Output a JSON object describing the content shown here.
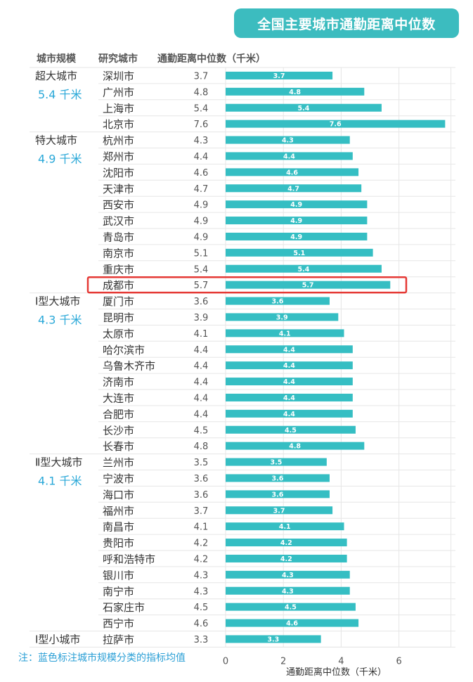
{
  "title": "全国主要城市通勤距离中位数",
  "headers": {
    "scale": "城市规模",
    "city": "研究城市",
    "distance": "通勤距离中位数（千米）"
  },
  "note": "注：蓝色标注城市规模分类的指标均值",
  "colors": {
    "bar": "#35bec3",
    "highlight": "#e53935",
    "group_avg": "#2aa8d8",
    "grid": "#e6e6e6"
  },
  "chart_data": {
    "type": "bar",
    "orientation": "horizontal",
    "xlabel": "通勤距离中位数（千米）",
    "xlim": [
      0,
      7.8
    ],
    "xticks": [
      0,
      2,
      4,
      6
    ],
    "highlight": "成都市",
    "groups": [
      {
        "name": "超大城市",
        "avg": "5.4 千米",
        "cities": [
          "深圳市",
          "广州市",
          "上海市",
          "北京市"
        ],
        "values": [
          3.7,
          4.8,
          5.4,
          7.6
        ]
      },
      {
        "name": "特大城市",
        "avg": "4.9 千米",
        "cities": [
          "杭州市",
          "郑州市",
          "沈阳市",
          "天津市",
          "西安市",
          "武汉市",
          "青岛市",
          "南京市",
          "重庆市",
          "成都市"
        ],
        "values": [
          4.3,
          4.4,
          4.6,
          4.7,
          4.9,
          4.9,
          4.9,
          5.1,
          5.4,
          5.7
        ]
      },
      {
        "name": "Ⅰ型大城市",
        "avg": "4.3 千米",
        "cities": [
          "厦门市",
          "昆明市",
          "太原市",
          "哈尔滨市",
          "乌鲁木齐市",
          "济南市",
          "大连市",
          "合肥市",
          "长沙市",
          "长春市"
        ],
        "values": [
          3.6,
          3.9,
          4.1,
          4.4,
          4.4,
          4.4,
          4.4,
          4.4,
          4.5,
          4.8
        ]
      },
      {
        "name": "Ⅱ型大城市",
        "avg": "4.1 千米",
        "cities": [
          "兰州市",
          "宁波市",
          "海口市",
          "福州市",
          "南昌市",
          "贵阳市",
          "呼和浩特市",
          "银川市",
          "南宁市",
          "石家庄市",
          "西宁市"
        ],
        "values": [
          3.5,
          3.6,
          3.6,
          3.7,
          4.1,
          4.2,
          4.2,
          4.3,
          4.3,
          4.5,
          4.6
        ]
      },
      {
        "name": "Ⅰ型小城市",
        "avg": "",
        "cities": [
          "拉萨市"
        ],
        "values": [
          3.3
        ]
      }
    ]
  }
}
